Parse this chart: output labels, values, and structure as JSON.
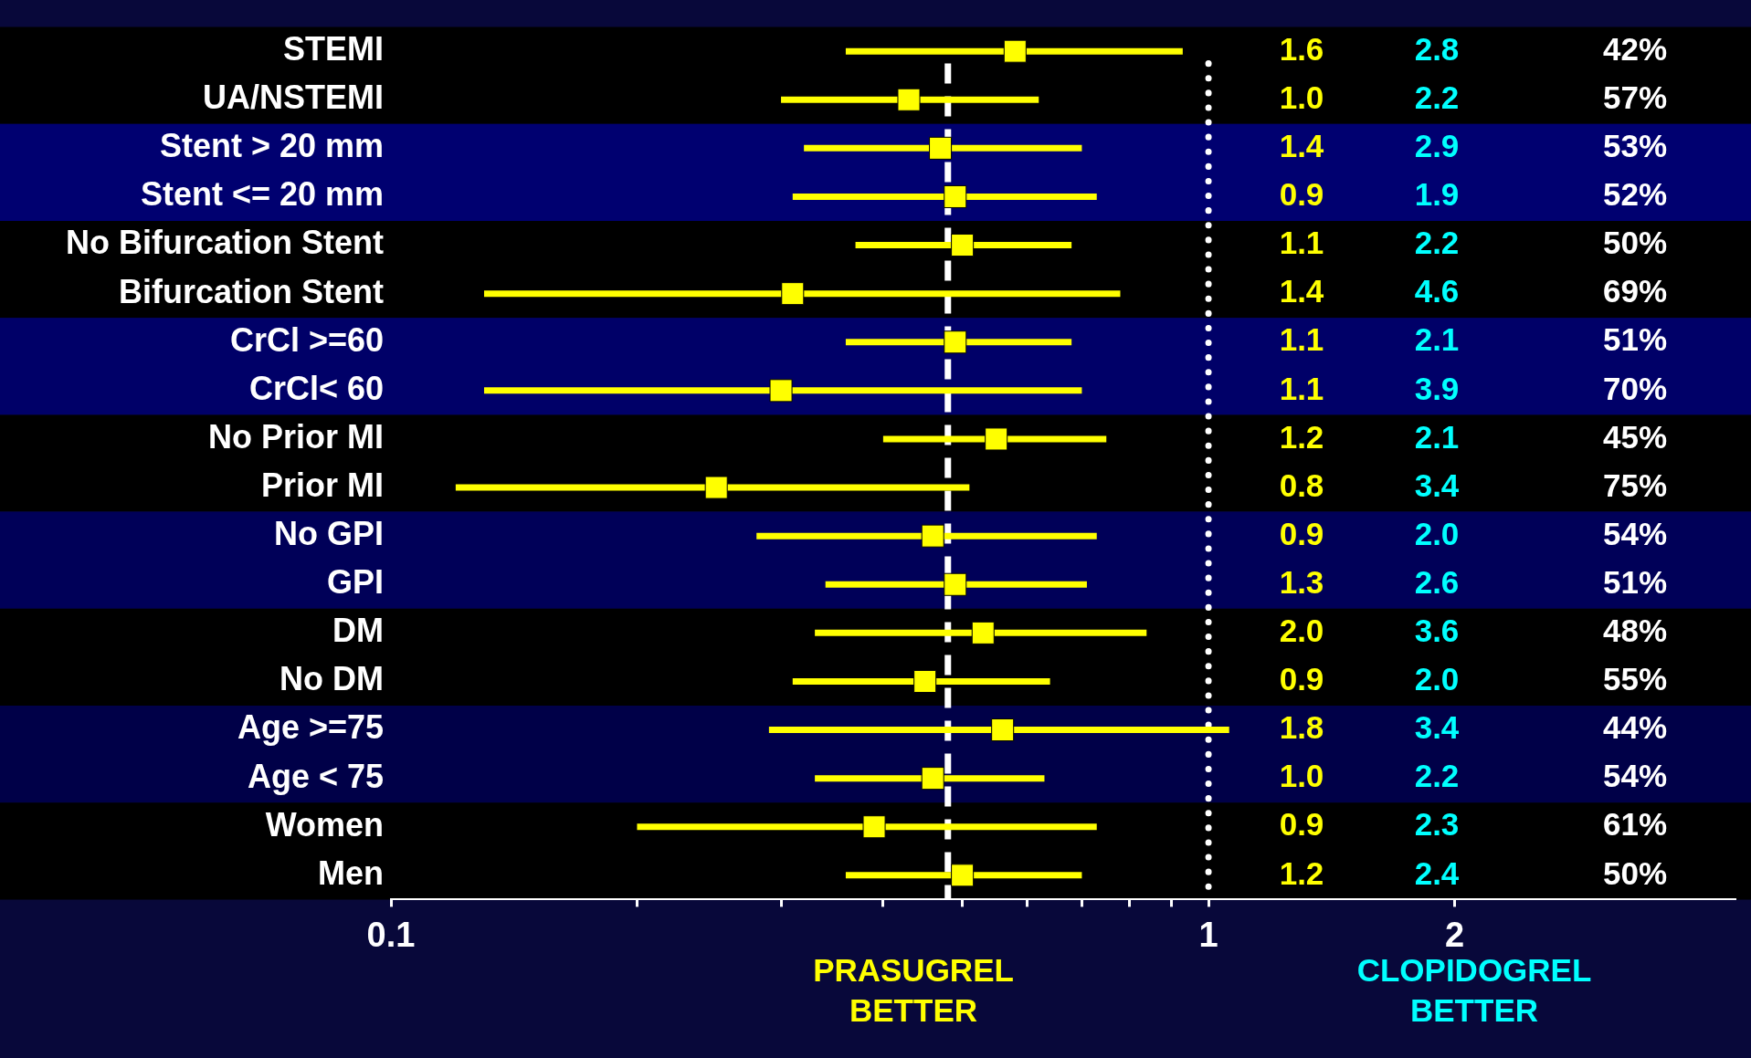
{
  "chart_data": {
    "type": "scatter",
    "orientation": "horizontal",
    "marker": "square",
    "grid": false,
    "legend": false,
    "log": "x",
    "categories": [
      "STEMI",
      "UA/NSTEMI",
      "Stent > 20 mm",
      "Stent <= 20 mm",
      "No Bifurcation Stent",
      "Bifurcation Stent",
      "CrCl >=60",
      "CrCl< 60",
      "No Prior MI",
      "Prior MI",
      "No GPI",
      "GPI",
      "DM",
      "No DM",
      "Age >=75",
      "Age < 75",
      "Women",
      "Men"
    ],
    "series": [
      {
        "color": "#ffff00",
        "values": [
          0.58,
          0.43,
          0.47,
          0.49,
          0.5,
          0.31,
          0.49,
          0.3,
          0.55,
          0.25,
          0.46,
          0.49,
          0.53,
          0.45,
          0.56,
          0.46,
          0.39,
          0.5
        ],
        "errors": [
          [
            0.36,
            0.93
          ],
          [
            0.3,
            0.62
          ],
          [
            0.32,
            0.7
          ],
          [
            0.31,
            0.73
          ],
          [
            0.37,
            0.68
          ],
          [
            0.13,
            0.78
          ],
          [
            0.36,
            0.68
          ],
          [
            0.13,
            0.7
          ],
          [
            0.4,
            0.75
          ],
          [
            0.12,
            0.51
          ],
          [
            0.28,
            0.73
          ],
          [
            0.34,
            0.71
          ],
          [
            0.33,
            0.84
          ],
          [
            0.31,
            0.64
          ],
          [
            0.29,
            1.06
          ],
          [
            0.33,
            0.63
          ],
          [
            0.2,
            0.73
          ],
          [
            0.36,
            0.7
          ]
        ]
      }
    ],
    "xlim": [
      0.1,
      4.4
    ],
    "xticks": [
      0.1,
      {
        "value": 0.2,
        "label": null
      },
      {
        "value": 0.3,
        "label": null
      },
      {
        "value": 0.4,
        "label": null
      },
      {
        "value": 0.5,
        "label": null
      },
      {
        "value": 0.6,
        "label": null
      },
      {
        "value": 0.7,
        "label": null
      },
      {
        "value": 0.8,
        "label": null
      },
      {
        "value": 0.9,
        "label": null
      },
      1,
      2
    ],
    "ref_lines": [
      {
        "axis": "x",
        "value": 0.48,
        "color": "#ffffff",
        "line_style": "dashed"
      },
      {
        "axis": "x",
        "value": 1,
        "color": "#ffffff",
        "line_style": "dotted"
      }
    ],
    "bands": [
      {
        "axis": "y",
        "from": "STEMI",
        "to": "UA/NSTEMI",
        "color": "#000000"
      },
      {
        "axis": "y",
        "from": "Stent > 20 mm",
        "to": "Stent <= 20 mm",
        "color": "#000070"
      },
      {
        "axis": "y",
        "from": "No Bifurcation Stent",
        "to": "Bifurcation Stent",
        "color": "#000000"
      },
      {
        "axis": "y",
        "from": "CrCl >=60",
        "to": "CrCl< 60",
        "color": "#000068"
      },
      {
        "axis": "y",
        "from": "No Prior MI",
        "to": "Prior MI",
        "color": "#000000"
      },
      {
        "axis": "y",
        "from": "No GPI",
        "to": "GPI",
        "color": "#000058"
      },
      {
        "axis": "y",
        "from": "DM",
        "to": "No DM",
        "color": "#000000"
      },
      {
        "axis": "y",
        "from": "Age >=75",
        "to": "Age < 75",
        "color": "#000048"
      },
      {
        "axis": "y",
        "from": "Women",
        "to": "Men",
        "color": "#000000"
      }
    ],
    "annotations": [
      "PRASUGREL\nBETTER",
      "CLOPIDOGREL\nBETTER",
      "1.6",
      "2.8",
      "42%",
      "1.0",
      "2.2",
      "57%",
      "1.4",
      "2.9",
      "53%",
      "0.9",
      "1.9",
      "52%",
      "1.1",
      "2.2",
      "50%",
      "1.4",
      "4.6",
      "69%",
      "1.1",
      "2.1",
      "51%",
      "1.1",
      "3.9",
      "70%",
      "1.2",
      "2.1",
      "45%",
      "0.8",
      "3.4",
      "75%",
      "0.9",
      "2.0",
      "54%",
      "1.3",
      "2.6",
      "51%",
      "2.0",
      "3.6",
      "48%",
      "0.9",
      "2.0",
      "55%",
      "1.8",
      "3.4",
      "44%",
      "1.0",
      "2.2",
      "54%",
      "0.9",
      "2.3",
      "61%",
      "1.2",
      "2.4",
      "50%"
    ]
  }
}
